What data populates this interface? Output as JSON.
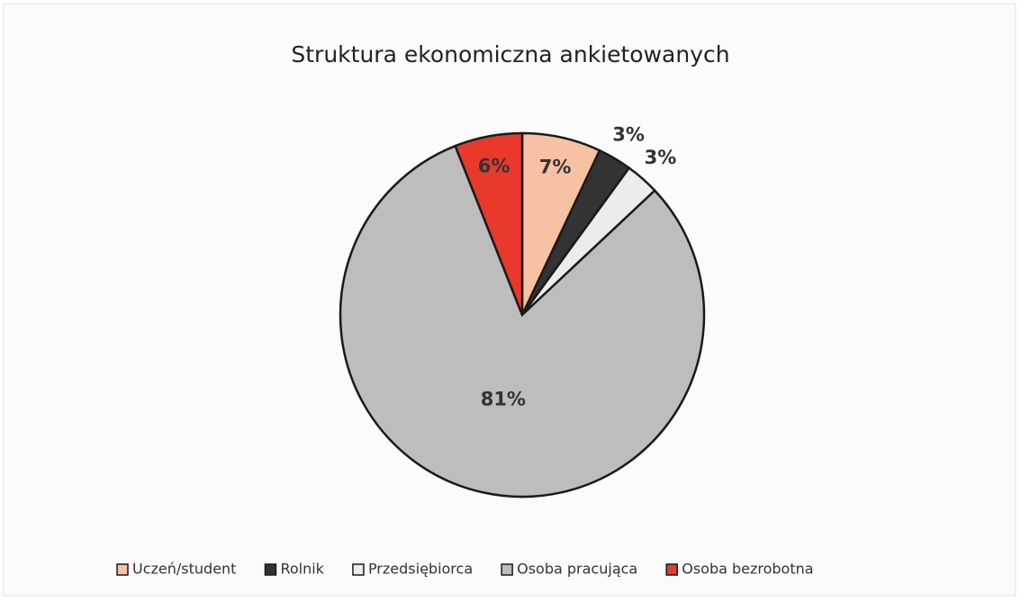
{
  "chart_data": {
    "type": "pie",
    "title": "Struktura ekonomiczna ankietowanych",
    "categories": [
      "Uczeń/student",
      "Rolnik",
      "Przedsiębiorca",
      "Osoba pracująca",
      "Osoba bezrobotna"
    ],
    "values": [
      7,
      3,
      3,
      81,
      6
    ],
    "value_labels": [
      "7%",
      "3%",
      "3%",
      "81%",
      "6%"
    ],
    "colors": [
      "#f7c1a3",
      "#333333",
      "#ececec",
      "#bdbdbd",
      "#e8392b"
    ],
    "legend": "bottom"
  }
}
